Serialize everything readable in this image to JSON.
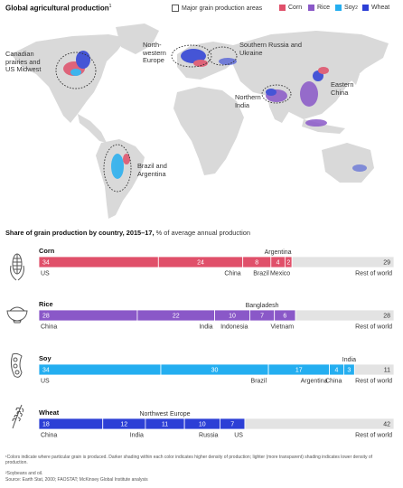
{
  "header": {
    "title": "Global agricultural production",
    "title_sup": "1",
    "legend": {
      "areas": "Major grain production areas",
      "corn": "Corn",
      "rice": "Rice",
      "soy": "Soy",
      "soy_sup": "2",
      "wheat": "Wheat"
    }
  },
  "map": {
    "regions": [
      "Canadian prairies and US Midwest",
      "North-western Europe",
      "Southern Russia and Ukraine",
      "Northern India",
      "Eastern China",
      "Brazil and Argentina"
    ]
  },
  "colors": {
    "corn": "#e0506a",
    "rice": "#8a58c8",
    "soy": "#24aef0",
    "wheat": "#2c3fd6",
    "rest": "#e3e3e3",
    "land": "#d9d9d9"
  },
  "chart_data": {
    "type": "bar",
    "title": "Share of grain production by country, 2015–17,",
    "subtitle": "% of average annual production",
    "series": [
      {
        "name": "Corn",
        "icon": "corn-icon",
        "segments": [
          {
            "label": "US",
            "value": 34
          },
          {
            "label": "China",
            "value": 24
          },
          {
            "label": "Brazil",
            "value": 8
          },
          {
            "label": "Argentina",
            "value": 4
          },
          {
            "label": "Mexico",
            "value": 2
          },
          {
            "label": "Rest of world",
            "value": 29
          }
        ]
      },
      {
        "name": "Rice",
        "icon": "rice-bowl-icon",
        "segments": [
          {
            "label": "China",
            "value": 28
          },
          {
            "label": "India",
            "value": 22
          },
          {
            "label": "Indonesia",
            "value": 10
          },
          {
            "label": "Bangladesh",
            "value": 7
          },
          {
            "label": "Vietnam",
            "value": 6
          },
          {
            "label": "Rest of world",
            "value": 28
          }
        ]
      },
      {
        "name": "Soy",
        "icon": "soybean-icon",
        "segments": [
          {
            "label": "US",
            "value": 34
          },
          {
            "label": "Brazil",
            "value": 30
          },
          {
            "label": "Argentina",
            "value": 17
          },
          {
            "label": "China",
            "value": 4
          },
          {
            "label": "India",
            "value": 3
          },
          {
            "label": "Rest of world",
            "value": 11
          }
        ]
      },
      {
        "name": "Wheat",
        "icon": "wheat-icon",
        "segments": [
          {
            "label": "China",
            "value": 18
          },
          {
            "label": "India",
            "value": 12
          },
          {
            "label": "Northwest Europe",
            "value": 11
          },
          {
            "label": "Russia",
            "value": 10
          },
          {
            "label": "US",
            "value": 7
          },
          {
            "label": "Rest of world",
            "value": 42
          }
        ]
      }
    ]
  },
  "footnotes": [
    "¹Colors indicate where particular grain is produced. Darker shading within each color indicates higher density of production; lighter (more transparent) shading indicates lower density of production.",
    "²Soybeans and oil.",
    "Source: Earth Stat, 2000; FAOSTAT; McKinsey Global Institute analysis"
  ]
}
